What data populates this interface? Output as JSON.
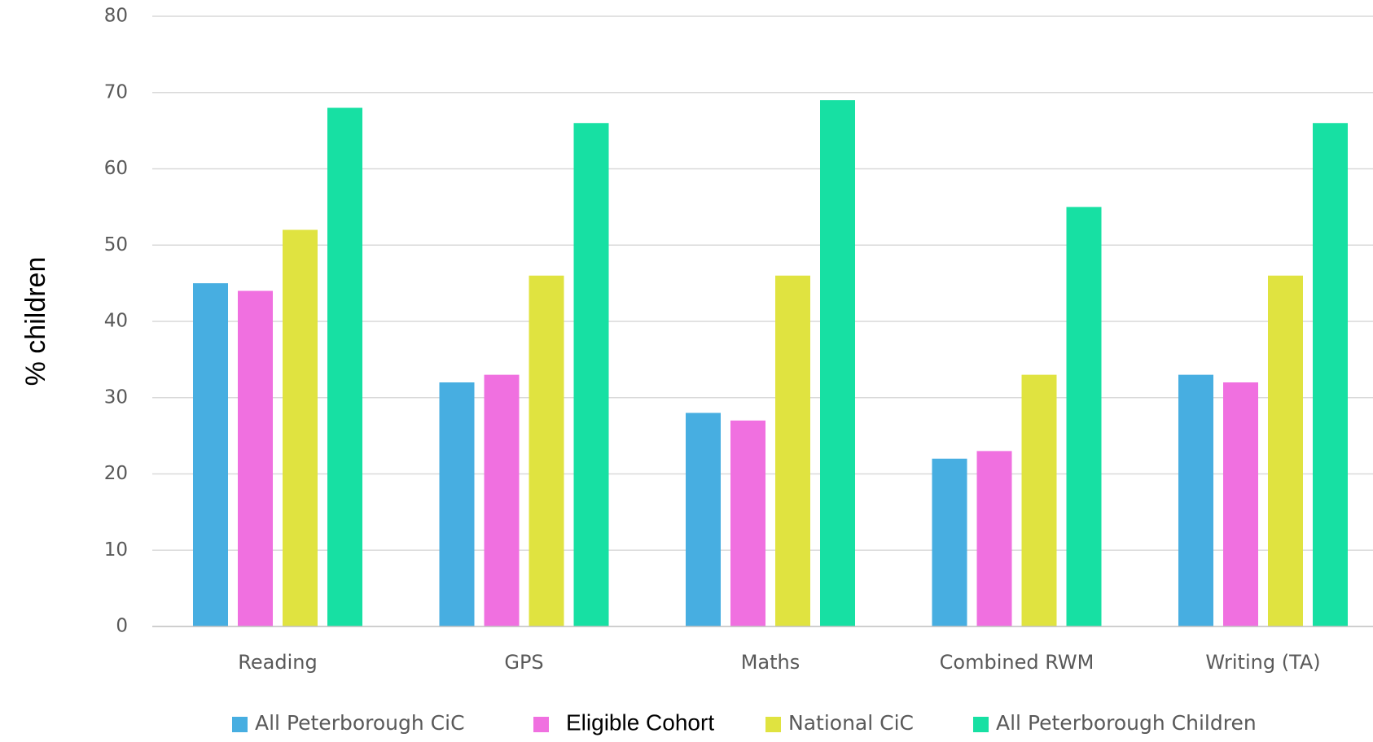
{
  "chart_data": {
    "type": "bar",
    "title": "",
    "xlabel": "",
    "ylabel": "% children",
    "ylim": [
      0,
      80
    ],
    "yticks": [
      0,
      10,
      20,
      30,
      40,
      50,
      60,
      70,
      80
    ],
    "grid": true,
    "legend_position": "bottom",
    "categories": [
      "Reading",
      "GPS",
      "Maths",
      "Combined RWM",
      "Writing (TA)"
    ],
    "series": [
      {
        "name": "All Peterborough CiC",
        "color": "#47aee1",
        "values": [
          45,
          32,
          28,
          22,
          33
        ]
      },
      {
        "name": "Eligible Cohort",
        "color": "#f070e0",
        "values": [
          44,
          33,
          27,
          23,
          32
        ]
      },
      {
        "name": "National CiC",
        "color": "#e0e340",
        "values": [
          52,
          46,
          46,
          33,
          46
        ]
      },
      {
        "name": "All Peterborough Children",
        "color": "#17e0a3",
        "values": [
          68,
          66,
          69,
          55,
          66
        ]
      }
    ]
  }
}
